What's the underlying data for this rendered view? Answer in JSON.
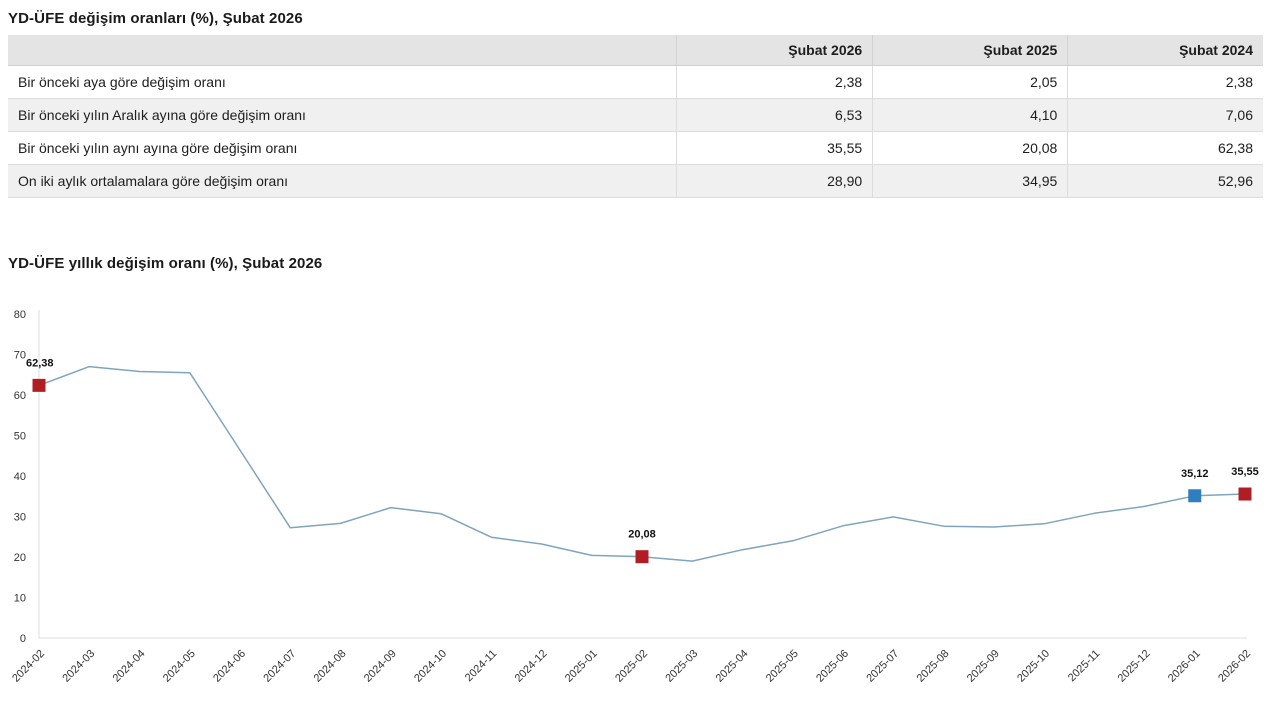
{
  "table_section": {
    "title": "YD-ÜFE değişim oranları (%), Şubat 2026",
    "columns": [
      "",
      "Şubat 2026",
      "Şubat 2025",
      "Şubat 2024"
    ],
    "rows": [
      {
        "label": "Bir önceki aya göre değişim oranı",
        "values": [
          "2,38",
          "2,05",
          "2,38"
        ]
      },
      {
        "label": "Bir önceki yılın Aralık ayına göre değişim oranı",
        "values": [
          "6,53",
          "4,10",
          "7,06"
        ]
      },
      {
        "label": "Bir önceki yılın aynı ayına göre değişim oranı",
        "values": [
          "35,55",
          "20,08",
          "62,38"
        ]
      },
      {
        "label": "On iki aylık ortalamalara göre değişim oranı",
        "values": [
          "28,90",
          "34,95",
          "52,96"
        ]
      }
    ]
  },
  "chart_section": {
    "title": "YD-ÜFE yıllık değişim oranı (%), Şubat 2026"
  },
  "chart_data": {
    "type": "line",
    "title": "YD-ÜFE yıllık değişim oranı (%), Şubat 2026",
    "x": [
      "2024-02",
      "2024-03",
      "2024-04",
      "2024-05",
      "2024-06",
      "2024-07",
      "2024-08",
      "2024-09",
      "2024-10",
      "2024-11",
      "2024-12",
      "2025-01",
      "2025-02",
      "2025-03",
      "2025-04",
      "2025-05",
      "2025-06",
      "2025-07",
      "2025-08",
      "2025-09",
      "2025-10",
      "2025-11",
      "2025-12",
      "2026-01",
      "2026-02"
    ],
    "series": [
      {
        "name": "YD-ÜFE yıllık değişim oranı (%)",
        "values": [
          62.38,
          67.0,
          65.8,
          65.5,
          46.4,
          27.2,
          28.3,
          32.2,
          30.7,
          24.9,
          23.2,
          20.4,
          20.08,
          19.0,
          21.8,
          24.0,
          27.7,
          29.9,
          27.6,
          27.4,
          28.2,
          30.8,
          32.5,
          35.12,
          35.55
        ]
      }
    ],
    "ylim": [
      0,
      80
    ],
    "ytick_step": 10,
    "grid": false,
    "legend": "none",
    "line_color": "#7fa4bd",
    "axis_color": "#dcdcdc",
    "tick_color": "#333333",
    "annotations": [
      {
        "x": "2024-02",
        "index": 0,
        "value": 62.38,
        "label": "62,38",
        "marker_color": "#b01e24"
      },
      {
        "x": "2025-02",
        "index": 12,
        "value": 20.08,
        "label": "20,08",
        "marker_color": "#b01e24"
      },
      {
        "x": "2026-01",
        "index": 23,
        "value": 35.12,
        "label": "35,12",
        "marker_color": "#2f7ec0"
      },
      {
        "x": "2026-02",
        "index": 24,
        "value": 35.55,
        "label": "35,55",
        "marker_color": "#b01e24"
      }
    ]
  }
}
